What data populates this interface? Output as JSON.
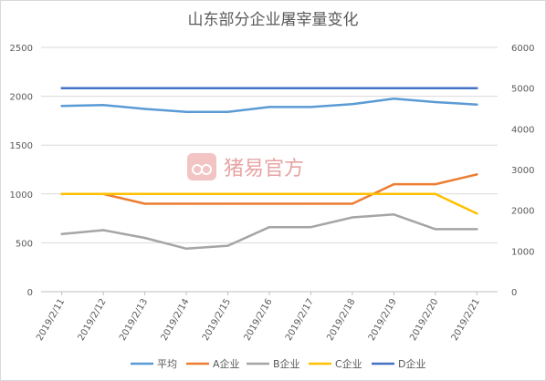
{
  "chart_data": {
    "type": "line",
    "title": "山东部分企业屠宰量变化",
    "categories": [
      "2019/2/11",
      "2019/2/12",
      "2019/2/13",
      "2019/2/14",
      "2019/2/15",
      "2019/2/16",
      "2019/2/17",
      "2019/2/18",
      "2019/2/19",
      "2019/2/20",
      "2019/2/21"
    ],
    "y_left": {
      "ticks": [
        "0",
        "500",
        "1000",
        "1500",
        "2000",
        "2500"
      ],
      "min": 0,
      "max": 2500
    },
    "y_right": {
      "ticks": [
        "0",
        "1000",
        "2000",
        "3000",
        "4000",
        "5000",
        "6000"
      ],
      "min": 0,
      "max": 6000
    },
    "grid": true,
    "legend_position": "bottom",
    "series": [
      {
        "name": "平均",
        "axis": "left",
        "color": "#5b9bd5",
        "values": [
          1900,
          1910,
          1870,
          1840,
          1840,
          1890,
          1890,
          1920,
          1975,
          1940,
          1915
        ]
      },
      {
        "name": "A企业",
        "axis": "left",
        "color": "#ed7d31",
        "values": [
          1000,
          1000,
          900,
          900,
          900,
          900,
          900,
          900,
          1100,
          1100,
          1200
        ]
      },
      {
        "name": "B企业",
        "axis": "left",
        "color": "#a5a5a5",
        "values": [
          590,
          630,
          550,
          440,
          470,
          660,
          660,
          760,
          790,
          640,
          640
        ]
      },
      {
        "name": "C企业",
        "axis": "left",
        "color": "#ffc000",
        "values": [
          1000,
          1000,
          1000,
          1000,
          1000,
          1000,
          1000,
          1000,
          1000,
          1000,
          800
        ]
      },
      {
        "name": "D企业",
        "axis": "right",
        "color": "#4472c4",
        "values": [
          5000,
          5000,
          5000,
          5000,
          5000,
          5000,
          5000,
          5000,
          5000,
          5000,
          5000
        ]
      }
    ]
  },
  "watermark": {
    "text": "猪易官方"
  }
}
